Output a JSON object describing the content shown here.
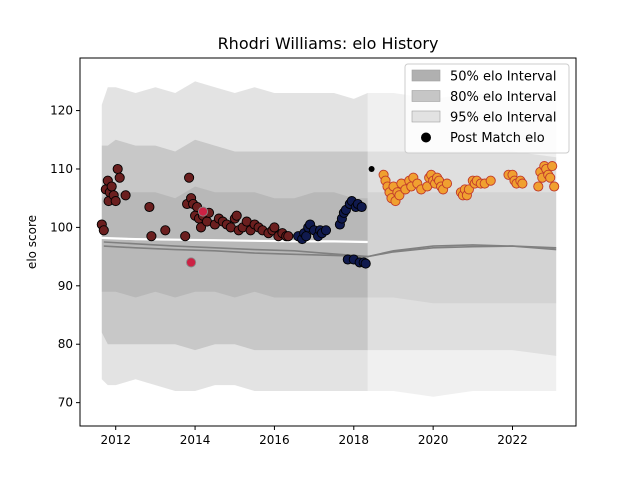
{
  "chart_data": {
    "type": "scatter",
    "title": "Rhodri Williams: elo History",
    "xlabel": "",
    "ylabel": "elo score",
    "xlim": [
      2011.1,
      2023.6
    ],
    "ylim": [
      66,
      129
    ],
    "xticks": [
      2012,
      2014,
      2016,
      2018,
      2020,
      2022
    ],
    "xtick_labels": [
      "2012",
      "2014",
      "2016",
      "2018",
      "2020",
      "2022"
    ],
    "yticks": [
      70,
      80,
      90,
      100,
      110,
      120
    ],
    "ytick_labels": [
      "70",
      "80",
      "90",
      "100",
      "110",
      "120"
    ],
    "grid": false,
    "legend": {
      "position": "top-right",
      "entries": [
        {
          "label": "50% elo Interval",
          "kind": "patch",
          "color": "#b0b0b0"
        },
        {
          "label": "80% elo Interval",
          "kind": "patch",
          "color": "#c6c6c6"
        },
        {
          "label": "95% elo Interval",
          "kind": "patch",
          "color": "#e2e2e2"
        },
        {
          "label": "Post Match elo",
          "kind": "marker",
          "color": "#000000"
        }
      ]
    },
    "bands_inferred": {
      "x": [
        2011.65,
        2011.8,
        2012.0,
        2012.5,
        2013.0,
        2013.5,
        2014.0,
        2014.5,
        2015.0,
        2015.5,
        2016.0,
        2016.5,
        2017.0,
        2017.5,
        2018.0,
        2018.35
      ],
      "p95_upper": [
        121,
        124,
        124,
        123,
        124,
        123,
        125,
        124,
        123,
        124,
        123,
        123,
        123,
        123,
        122,
        123
      ],
      "p80_upper": [
        114,
        114,
        115,
        114,
        114,
        113,
        115,
        114,
        113,
        113,
        113,
        113,
        113,
        113,
        113,
        113
      ],
      "p50_upper": [
        105,
        106,
        106,
        106,
        106,
        105,
        107,
        106,
        106,
        106,
        105,
        105,
        106,
        106,
        105,
        105
      ],
      "p50_lower": [
        89,
        89,
        89,
        88,
        89,
        88,
        89,
        89,
        88,
        89,
        88,
        88,
        88,
        88,
        88,
        88
      ],
      "p80_lower": [
        82,
        80,
        80,
        80,
        80,
        80,
        79,
        80,
        80,
        79,
        79,
        79,
        79,
        79,
        79,
        79
      ],
      "p95_lower": [
        74,
        73,
        73,
        74,
        73,
        72,
        72,
        73,
        73,
        72,
        72,
        72,
        72,
        72,
        72,
        72
      ]
    },
    "right_bands_inferred": {
      "x": [
        2018.35,
        2019.0,
        2020.0,
        2021.0,
        2022.0,
        2023.1
      ],
      "p95_upper": [
        123,
        123,
        122,
        123,
        122,
        122
      ],
      "p80_upper": [
        113,
        113,
        113,
        113,
        113,
        112
      ],
      "p50_upper": [
        106,
        106,
        106,
        106,
        106,
        106
      ],
      "p50_lower": [
        88,
        88,
        87,
        87,
        87,
        87
      ],
      "p80_lower": [
        79,
        79,
        79,
        79,
        79,
        78
      ],
      "p95_lower": [
        72,
        72,
        71,
        72,
        72,
        72
      ]
    },
    "white_line": {
      "x": [
        2011.6,
        2012.5,
        2013.5,
        2014.5,
        2015.5,
        2016.5,
        2017.5,
        2018.35
      ],
      "y": [
        98.2,
        98.0,
        97.9,
        97.8,
        97.7,
        97.6,
        97.6,
        97.5
      ]
    },
    "gray_lines": [
      {
        "x": [
          2011.7,
          2012.5,
          2013.5,
          2014.5,
          2015.5,
          2016.5,
          2017.2,
          2018.0,
          2018.35,
          2019.0,
          2020.0,
          2021.0,
          2022.0,
          2023.1
        ],
        "y": [
          97.5,
          97.2,
          96.8,
          96.5,
          96.2,
          96.0,
          95.6,
          95.2,
          95.0,
          95.8,
          96.5,
          96.7,
          96.8,
          96.5
        ]
      },
      {
        "x": [
          2011.7,
          2012.5,
          2013.5,
          2014.5,
          2015.5,
          2016.5,
          2017.5,
          2018.35,
          2019.0,
          2020.0,
          2021.0,
          2022.0,
          2023.1
        ],
        "y": [
          96.8,
          96.5,
          96.2,
          96.0,
          95.6,
          95.4,
          95.2,
          95.0,
          96.0,
          96.8,
          97.0,
          96.8,
          96.2
        ]
      }
    ],
    "series": [
      {
        "color": "#6b1f1f",
        "x": [
          2011.65,
          2011.7,
          2011.75,
          2011.8,
          2011.82,
          2011.85,
          2011.9,
          2011.95,
          2012.0,
          2012.05,
          2012.1,
          2012.25,
          2012.85,
          2012.9,
          2013.25,
          2013.75,
          2013.8,
          2013.85,
          2013.9,
          2013.95,
          2014.0,
          2014.05,
          2014.1,
          2014.15,
          2014.2,
          2014.3,
          2014.35,
          2014.5,
          2014.6,
          2014.7,
          2014.8,
          2014.9,
          2015.0,
          2015.05,
          2015.1,
          2015.2,
          2015.3,
          2015.4,
          2015.5,
          2015.6,
          2015.7,
          2015.85,
          2015.95,
          2016.0,
          2016.1,
          2016.2,
          2016.3,
          2016.35
        ],
        "y": [
          100.5,
          99.5,
          106.5,
          108.0,
          104.5,
          106.0,
          107.0,
          105.5,
          104.5,
          110.0,
          108.5,
          105.5,
          103.5,
          98.5,
          99.5,
          98.5,
          104.0,
          108.5,
          105.0,
          104.0,
          102.0,
          103.5,
          101.5,
          100.0,
          102.0,
          101.0,
          102.5,
          100.5,
          101.5,
          101.0,
          100.5,
          100.0,
          101.5,
          102.0,
          99.5,
          100.0,
          101.0,
          99.5,
          100.5,
          100.0,
          99.5,
          99.0,
          99.5,
          100.0,
          98.5,
          99.0,
          98.5,
          98.5
        ]
      },
      {
        "color": "#cc2244",
        "x": [
          2013.9,
          2014.2
        ],
        "y": [
          94.0,
          102.7
        ]
      },
      {
        "color": "#101a4e",
        "x": [
          2016.6,
          2016.7,
          2016.75,
          2016.8,
          2016.85,
          2016.9,
          2017.0,
          2017.1,
          2017.15,
          2017.2,
          2017.3,
          2017.65,
          2017.7,
          2017.75,
          2017.8,
          2017.85,
          2017.9,
          2017.95,
          2018.0,
          2018.05,
          2018.1,
          2018.15,
          2018.2,
          2018.25,
          2018.3
        ],
        "y": [
          98.5,
          98.0,
          99.0,
          98.5,
          100.0,
          100.5,
          99.5,
          98.5,
          99.5,
          99.0,
          99.5,
          100.5,
          101.5,
          102.5,
          103.0,
          94.5,
          104.0,
          104.5,
          94.5,
          103.5,
          104.0,
          94.0,
          103.5,
          94.0,
          93.8
        ]
      },
      {
        "color": "#f0a030",
        "x": [
          2018.75,
          2018.8,
          2018.85,
          2018.9,
          2018.95,
          2019.0,
          2019.05,
          2019.1,
          2019.15,
          2019.2,
          2019.3,
          2019.4,
          2019.45,
          2019.5,
          2019.6,
          2019.7,
          2019.85,
          2019.9,
          2019.95,
          2020.0,
          2020.05,
          2020.1,
          2020.15,
          2020.2,
          2020.25,
          2020.35,
          2020.7,
          2020.75,
          2020.8,
          2020.85,
          2020.9,
          2021.0,
          2021.05,
          2021.1,
          2021.2,
          2021.3,
          2021.45,
          2021.9,
          2022.0,
          2022.05,
          2022.1,
          2022.2,
          2022.25,
          2022.65,
          2022.7,
          2022.75,
          2022.8,
          2022.85,
          2022.9,
          2022.95,
          2023.0,
          2023.05
        ],
        "y": [
          109.0,
          108.0,
          107.0,
          106.0,
          105.0,
          107.0,
          104.5,
          106.0,
          105.5,
          107.5,
          106.5,
          108.0,
          107.0,
          108.5,
          107.5,
          106.5,
          107.0,
          108.5,
          109.0,
          108.0,
          107.5,
          108.5,
          108.0,
          107.0,
          106.5,
          107.5,
          106.0,
          105.5,
          106.5,
          105.5,
          106.5,
          108.0,
          107.5,
          108.0,
          107.5,
          107.5,
          108.0,
          109.0,
          109.0,
          108.0,
          107.5,
          108.0,
          107.5,
          107.0,
          109.5,
          108.5,
          110.5,
          110.0,
          109.0,
          108.5,
          110.5,
          107.0
        ]
      },
      {
        "color": "#000000",
        "x": [
          2018.45
        ],
        "y": [
          110.0
        ]
      }
    ]
  }
}
